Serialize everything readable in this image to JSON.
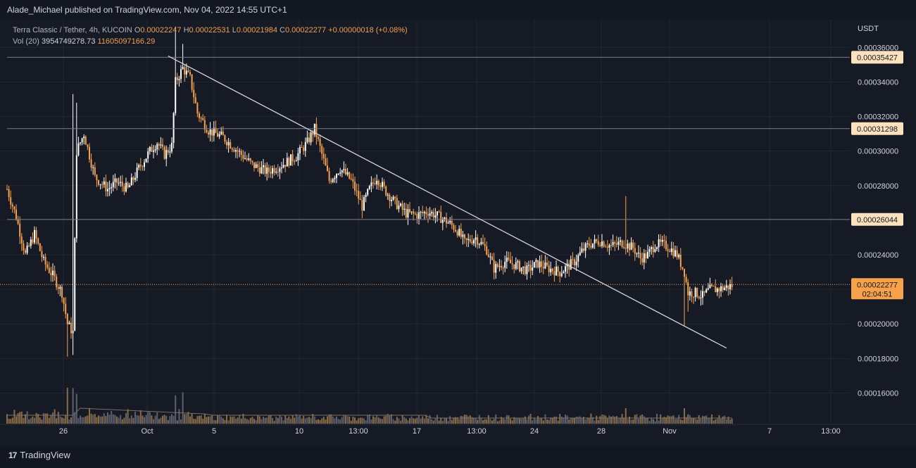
{
  "header": {
    "publisher": "Alade_Michael published on TradingView.com, Nov 04, 2022 14:55 UTC+1"
  },
  "legend": {
    "symbol": "Terra Classic / Tether, 4h, KUCOIN",
    "o_label": "O",
    "o": "0.00022247",
    "h_label": "H",
    "h": "0.00022531",
    "l_label": "L",
    "l": "0.00021984",
    "c_label": "C",
    "c": "0.00022277",
    "change": "+0.00000018 (+0.08%)",
    "vol_label": "Vol (20)",
    "vol": "3954749278.73",
    "vol_ma": "11605097166.29"
  },
  "footer": {
    "brand": "TradingView",
    "logo": "17"
  },
  "colors": {
    "up": "#ffffff",
    "down": "#f7a24b",
    "bg": "#161a25",
    "grid": "#232733",
    "trend": "#d1d4dc",
    "level": "#787b86",
    "current": "#f7a24b"
  },
  "chart_data": {
    "type": "candlestick",
    "pair": "Terra Classic / Tether",
    "timeframe": "4h",
    "exchange": "KUCOIN",
    "currency_label": "USDT",
    "ylim": [
      0.00015,
      0.000376
    ],
    "y_ticks": [
      "0.00036000",
      "0.00034000",
      "0.00032000",
      "0.00030000",
      "0.00028000",
      "0.00026000",
      "0.00024000",
      "0.00022000",
      "0.00020000",
      "0.00018000",
      "0.00016000"
    ],
    "x_ticks": [
      "26",
      "Oct",
      "5",
      "10",
      "13:00",
      "17",
      "13:00",
      "24",
      "28",
      "Nov",
      "7",
      "13:00"
    ],
    "horizontal_levels": [
      {
        "value": 0.00035427,
        "label": "0.00035427"
      },
      {
        "value": 0.00031298,
        "label": "0.00031298"
      },
      {
        "value": 0.00026044,
        "label": "0.00026044"
      }
    ],
    "current_price": {
      "value": 0.00022277,
      "label": "0.00022277",
      "countdown": "02:04:51"
    },
    "trendline": {
      "from": [
        0.000355,
        "Oct 2"
      ],
      "to": [
        0.000186,
        "Nov 4"
      ]
    },
    "price_path": [
      [
        0,
        0.000278
      ],
      [
        5,
        0.000262
      ],
      [
        10,
        0.00024
      ],
      [
        15,
        0.000252
      ],
      [
        20,
        0.000236
      ],
      [
        25,
        0.000228
      ],
      [
        30,
        0.000218
      ],
      [
        33,
        0.0002
      ],
      [
        36,
        0.000195
      ],
      [
        38,
        0.0003
      ],
      [
        42,
        0.00031
      ],
      [
        48,
        0.000285
      ],
      [
        55,
        0.000278
      ],
      [
        60,
        0.000282
      ],
      [
        66,
        0.000278
      ],
      [
        72,
        0.00029
      ],
      [
        78,
        0.0003
      ],
      [
        82,
        0.000305
      ],
      [
        86,
        0.000298
      ],
      [
        90,
        0.000303
      ],
      [
        92,
        0.00034
      ],
      [
        96,
        0.000348
      ],
      [
        100,
        0.000342
      ],
      [
        104,
        0.000322
      ],
      [
        110,
        0.000312
      ],
      [
        118,
        0.000308
      ],
      [
        126,
        0.0003
      ],
      [
        134,
        0.000292
      ],
      [
        142,
        0.000288
      ],
      [
        150,
        0.000292
      ],
      [
        158,
        0.000297
      ],
      [
        164,
        0.000305
      ],
      [
        168,
        0.000313
      ],
      [
        172,
        0.000298
      ],
      [
        176,
        0.000283
      ],
      [
        182,
        0.00029
      ],
      [
        188,
        0.000283
      ],
      [
        194,
        0.000268
      ],
      [
        198,
        0.000278
      ],
      [
        202,
        0.000285
      ],
      [
        206,
        0.000278
      ],
      [
        212,
        0.00027
      ],
      [
        218,
        0.000264
      ],
      [
        224,
        0.000263
      ],
      [
        230,
        0.000265
      ],
      [
        236,
        0.000262
      ],
      [
        242,
        0.000258
      ],
      [
        246,
        0.000254
      ],
      [
        250,
        0.000247
      ],
      [
        256,
        0.00025
      ],
      [
        262,
        0.000243
      ],
      [
        266,
        0.000232
      ],
      [
        272,
        0.000236
      ],
      [
        278,
        0.000234
      ],
      [
        284,
        0.000231
      ],
      [
        290,
        0.000235
      ],
      [
        296,
        0.000232
      ],
      [
        302,
        0.00023
      ],
      [
        306,
        0.000233
      ],
      [
        310,
        0.000236
      ],
      [
        314,
        0.000242
      ],
      [
        318,
        0.000246
      ],
      [
        324,
        0.000248
      ],
      [
        330,
        0.000245
      ],
      [
        336,
        0.000247
      ],
      [
        342,
        0.000244
      ],
      [
        346,
        0.000238
      ],
      [
        350,
        0.00024
      ],
      [
        354,
        0.000246
      ],
      [
        358,
        0.000246
      ],
      [
        362,
        0.000244
      ],
      [
        366,
        0.00024
      ],
      [
        370,
        0.00023
      ],
      [
        372,
        0.000218
      ],
      [
        376,
        0.000218
      ],
      [
        380,
        0.000216
      ],
      [
        384,
        0.00022
      ],
      [
        388,
        0.00022
      ],
      [
        392,
        0.000221
      ],
      [
        396,
        0.000222
      ]
    ],
    "volume_label": "Vol (20)"
  }
}
